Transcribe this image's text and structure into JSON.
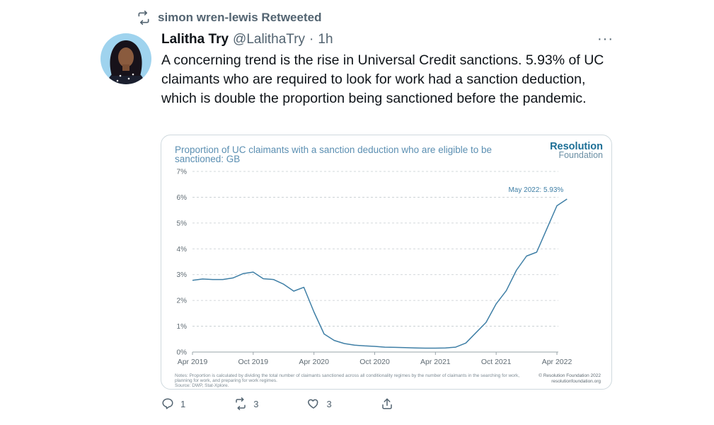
{
  "retweet_context": {
    "label": "simon wren-lewis Retweeted"
  },
  "tweet": {
    "author_name": "Lalitha Try",
    "handle": "@LalithaTry",
    "separator": "·",
    "time": "1h",
    "text": "A concerning trend is the rise in Universal Credit sanctions. 5.93% of UC claimants who are required to look for work had a sanction deduction, which is double the proportion being sanctioned before the pandemic.",
    "more_label": "···"
  },
  "card": {
    "logo_line1": "Resolution",
    "logo_line2": "Foundation",
    "note": "Notes: Proportion is calculated by dividing the total number of claimants sanctioned across all conditionality regimes by the number of claimants in the searching for work, planning for work, and preparing for work regimes.",
    "source": "Source: DWP, Stat-Xplore.",
    "copyright": "© Resolution Foundation 2022",
    "site": "resolutionfoundation.org"
  },
  "chart_data": {
    "type": "line",
    "title": "Proportion of UC claimants with a sanction deduction who are eligible to be sanctioned: GB",
    "y_ticks": [
      "0%",
      "1%",
      "2%",
      "3%",
      "4%",
      "5%",
      "6%",
      "7%"
    ],
    "ylim": [
      0,
      7
    ],
    "x_ticks": [
      "Apr 2019",
      "Oct 2019",
      "Apr 2020",
      "Oct 2020",
      "Apr 2021",
      "Oct 2021",
      "Apr 2022"
    ],
    "x_tick_months": [
      0,
      6,
      12,
      18,
      24,
      30,
      36
    ],
    "annotation": "May 2022: 5.93%",
    "line_color": "#3f7fa6",
    "grid": true,
    "series": [
      {
        "months": [
          0,
          1,
          2,
          3,
          4,
          5,
          6,
          7,
          8,
          9,
          10,
          11,
          12,
          13,
          14,
          15,
          16,
          17,
          18,
          19,
          20,
          21,
          22,
          23,
          24,
          25,
          26,
          27,
          28,
          29,
          30,
          31,
          32,
          33,
          34,
          35,
          36,
          37
        ],
        "values": [
          2.78,
          2.83,
          2.81,
          2.81,
          2.87,
          3.04,
          3.1,
          2.84,
          2.81,
          2.63,
          2.36,
          2.51,
          1.55,
          0.7,
          0.45,
          0.33,
          0.27,
          0.24,
          0.22,
          0.19,
          0.18,
          0.17,
          0.16,
          0.15,
          0.15,
          0.16,
          0.19,
          0.35,
          0.75,
          1.15,
          1.87,
          2.38,
          3.17,
          3.72,
          3.87,
          4.77,
          5.67,
          5.93
        ]
      }
    ]
  },
  "actions": {
    "reply_count": "1",
    "retweet_count": "3",
    "like_count": "3"
  },
  "colors": {
    "muted": "#536471",
    "accent": "#1d6f96",
    "line": "#3f7fa6"
  },
  "icons": [
    "retweet-icon",
    "more-icon",
    "reply-icon",
    "like-icon",
    "share-icon"
  ]
}
